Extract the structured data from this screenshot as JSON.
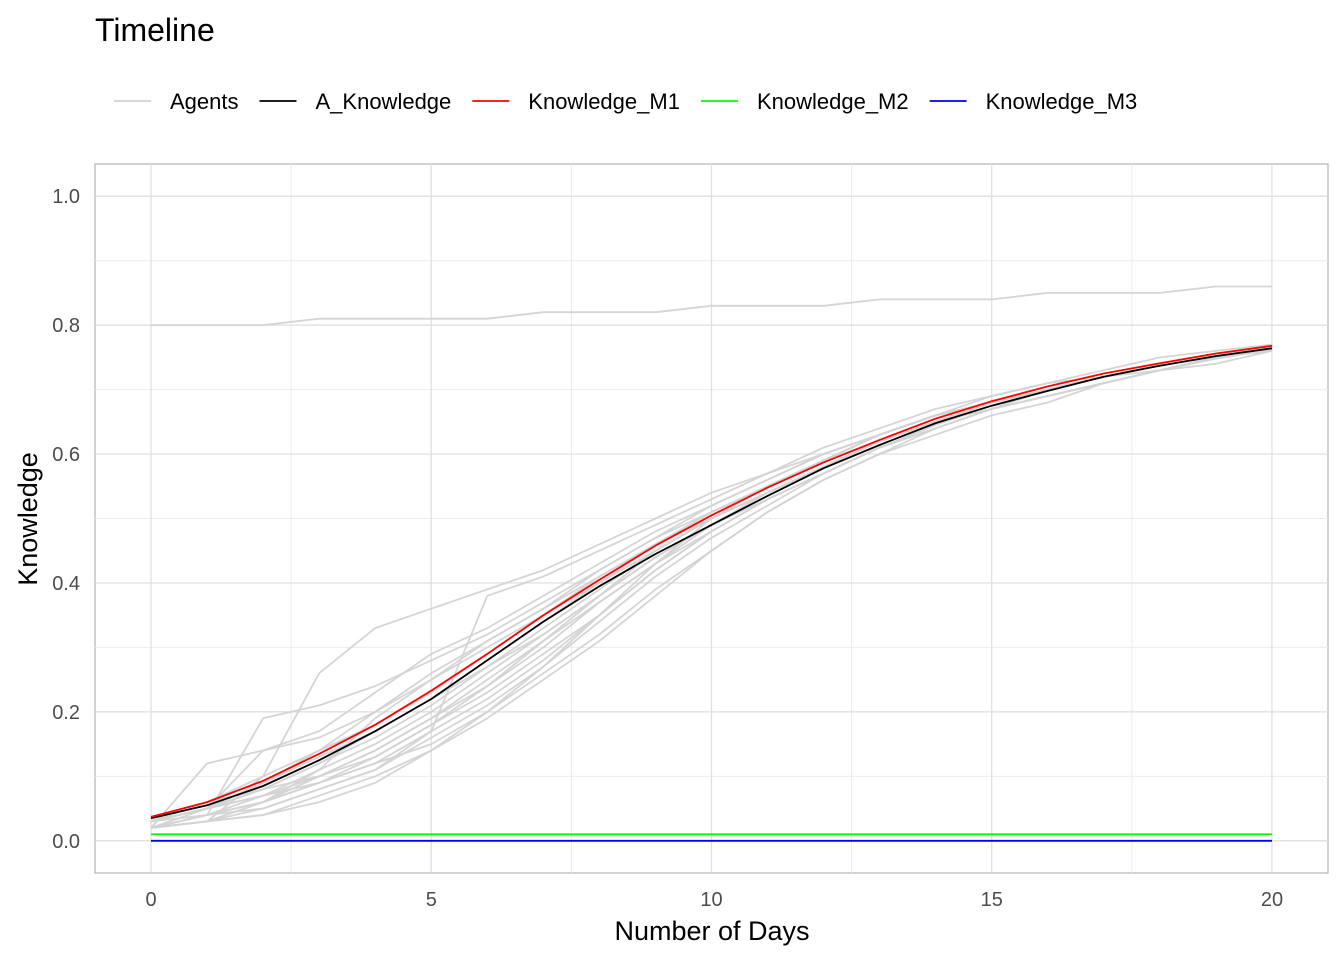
{
  "chart_data": {
    "type": "line",
    "title": "Timeline",
    "xlabel": "Number of Days",
    "ylabel": "Knowledge",
    "xlim": [
      -1,
      21
    ],
    "ylim": [
      -0.05,
      1.05
    ],
    "x_ticks": [
      0,
      5,
      10,
      15,
      20
    ],
    "y_ticks": [
      0.0,
      0.2,
      0.4,
      0.6,
      0.8,
      1.0
    ],
    "y_tick_labels": [
      "0.0",
      "0.2",
      "0.4",
      "0.6",
      "0.8",
      "1.0"
    ],
    "grid": true,
    "legend_position": "top",
    "x": [
      0,
      1,
      2,
      3,
      4,
      5,
      6,
      7,
      8,
      9,
      10,
      11,
      12,
      13,
      14,
      15,
      16,
      17,
      18,
      19,
      20
    ],
    "series": [
      {
        "name": "Agents",
        "color": "#d3d3d3",
        "role": "agents"
      },
      {
        "name": "A_Knowledge",
        "color": "#000000",
        "values": [
          0.035,
          0.055,
          0.085,
          0.125,
          0.17,
          0.22,
          0.28,
          0.34,
          0.395,
          0.445,
          0.49,
          0.535,
          0.578,
          0.614,
          0.648,
          0.675,
          0.698,
          0.72,
          0.737,
          0.752,
          0.764
        ]
      },
      {
        "name": "Knowledge_M1",
        "color": "#ff0000",
        "values": [
          0.037,
          0.06,
          0.093,
          0.135,
          0.18,
          0.233,
          0.29,
          0.35,
          0.405,
          0.458,
          0.505,
          0.548,
          0.587,
          0.622,
          0.655,
          0.682,
          0.705,
          0.725,
          0.741,
          0.756,
          0.768
        ]
      },
      {
        "name": "Knowledge_M2",
        "color": "#00ff00",
        "values": [
          0.01,
          0.01,
          0.01,
          0.01,
          0.01,
          0.01,
          0.01,
          0.01,
          0.01,
          0.01,
          0.01,
          0.01,
          0.01,
          0.01,
          0.01,
          0.01,
          0.01,
          0.01,
          0.01,
          0.01,
          0.01
        ]
      },
      {
        "name": "Knowledge_M3",
        "color": "#0000ff",
        "values": [
          0.0,
          0.0,
          0.0,
          0.0,
          0.0,
          0.0,
          0.0,
          0.0,
          0.0,
          0.0,
          0.0,
          0.0,
          0.0,
          0.0,
          0.0,
          0.0,
          0.0,
          0.0,
          0.0,
          0.0,
          0.0
        ]
      }
    ],
    "agents": [
      [
        0.8,
        0.8,
        0.8,
        0.81,
        0.81,
        0.81,
        0.81,
        0.82,
        0.82,
        0.82,
        0.83,
        0.83,
        0.83,
        0.84,
        0.84,
        0.84,
        0.85,
        0.85,
        0.85,
        0.86,
        0.86
      ],
      [
        0.02,
        0.12,
        0.14,
        0.16,
        0.2,
        0.25,
        0.31,
        0.36,
        0.42,
        0.47,
        0.52,
        0.56,
        0.6,
        0.63,
        0.66,
        0.69,
        0.71,
        0.73,
        0.75,
        0.76,
        0.77
      ],
      [
        0.02,
        0.04,
        0.19,
        0.21,
        0.24,
        0.28,
        0.32,
        0.37,
        0.42,
        0.47,
        0.51,
        0.55,
        0.59,
        0.63,
        0.66,
        0.68,
        0.7,
        0.72,
        0.74,
        0.75,
        0.765
      ],
      [
        0.02,
        0.03,
        0.1,
        0.26,
        0.33,
        0.36,
        0.39,
        0.42,
        0.46,
        0.5,
        0.54,
        0.57,
        0.61,
        0.64,
        0.67,
        0.69,
        0.71,
        0.72,
        0.73,
        0.75,
        0.76
      ],
      [
        0.03,
        0.05,
        0.14,
        0.17,
        0.23,
        0.29,
        0.33,
        0.38,
        0.43,
        0.48,
        0.52,
        0.56,
        0.6,
        0.63,
        0.66,
        0.68,
        0.7,
        0.72,
        0.74,
        0.755,
        0.765
      ],
      [
        0.03,
        0.05,
        0.07,
        0.09,
        0.12,
        0.15,
        0.2,
        0.26,
        0.32,
        0.39,
        0.45,
        0.51,
        0.56,
        0.6,
        0.64,
        0.67,
        0.7,
        0.72,
        0.74,
        0.755,
        0.768
      ],
      [
        0.02,
        0.03,
        0.04,
        0.07,
        0.1,
        0.14,
        0.19,
        0.25,
        0.31,
        0.38,
        0.45,
        0.51,
        0.56,
        0.6,
        0.63,
        0.66,
        0.68,
        0.71,
        0.73,
        0.75,
        0.762
      ],
      [
        0.02,
        0.03,
        0.05,
        0.08,
        0.11,
        0.17,
        0.38,
        0.41,
        0.45,
        0.49,
        0.53,
        0.57,
        0.6,
        0.63,
        0.66,
        0.68,
        0.7,
        0.72,
        0.74,
        0.75,
        0.765
      ],
      [
        0.03,
        0.05,
        0.07,
        0.1,
        0.14,
        0.19,
        0.24,
        0.3,
        0.37,
        0.43,
        0.49,
        0.54,
        0.58,
        0.62,
        0.65,
        0.68,
        0.7,
        0.72,
        0.74,
        0.755,
        0.767
      ],
      [
        0.02,
        0.04,
        0.06,
        0.09,
        0.13,
        0.18,
        0.23,
        0.29,
        0.35,
        0.42,
        0.48,
        0.53,
        0.57,
        0.61,
        0.64,
        0.67,
        0.69,
        0.71,
        0.73,
        0.75,
        0.763
      ],
      [
        0.03,
        0.05,
        0.08,
        0.12,
        0.16,
        0.21,
        0.27,
        0.33,
        0.39,
        0.45,
        0.5,
        0.54,
        0.58,
        0.62,
        0.65,
        0.68,
        0.7,
        0.72,
        0.74,
        0.755,
        0.766
      ],
      [
        0.02,
        0.03,
        0.06,
        0.11,
        0.19,
        0.25,
        0.3,
        0.35,
        0.4,
        0.45,
        0.5,
        0.54,
        0.58,
        0.62,
        0.65,
        0.675,
        0.7,
        0.72,
        0.74,
        0.752,
        0.765
      ],
      [
        0.03,
        0.06,
        0.1,
        0.14,
        0.18,
        0.23,
        0.29,
        0.35,
        0.41,
        0.46,
        0.51,
        0.55,
        0.59,
        0.63,
        0.66,
        0.68,
        0.7,
        0.72,
        0.74,
        0.755,
        0.768
      ],
      [
        0.02,
        0.04,
        0.05,
        0.08,
        0.11,
        0.16,
        0.21,
        0.27,
        0.34,
        0.41,
        0.47,
        0.52,
        0.57,
        0.61,
        0.64,
        0.67,
        0.69,
        0.71,
        0.73,
        0.75,
        0.762
      ],
      [
        0.03,
        0.05,
        0.09,
        0.13,
        0.17,
        0.22,
        0.27,
        0.32,
        0.38,
        0.44,
        0.49,
        0.53,
        0.57,
        0.61,
        0.64,
        0.67,
        0.69,
        0.71,
        0.73,
        0.74,
        0.76
      ],
      [
        0.02,
        0.03,
        0.04,
        0.06,
        0.09,
        0.14,
        0.2,
        0.27,
        0.35,
        0.43,
        0.5,
        0.55,
        0.59,
        0.63,
        0.66,
        0.68,
        0.7,
        0.72,
        0.74,
        0.755,
        0.765
      ],
      [
        0.03,
        0.06,
        0.08,
        0.1,
        0.13,
        0.18,
        0.24,
        0.31,
        0.38,
        0.45,
        0.5,
        0.55,
        0.59,
        0.62,
        0.65,
        0.67,
        0.69,
        0.71,
        0.73,
        0.75,
        0.763
      ],
      [
        0.02,
        0.04,
        0.07,
        0.11,
        0.15,
        0.2,
        0.26,
        0.32,
        0.38,
        0.44,
        0.49,
        0.54,
        0.58,
        0.62,
        0.65,
        0.68,
        0.7,
        0.72,
        0.74,
        0.75,
        0.764
      ],
      [
        0.03,
        0.05,
        0.08,
        0.12,
        0.17,
        0.22,
        0.28,
        0.34,
        0.4,
        0.46,
        0.51,
        0.55,
        0.59,
        0.63,
        0.66,
        0.68,
        0.7,
        0.72,
        0.74,
        0.755,
        0.766
      ],
      [
        0.02,
        0.04,
        0.06,
        0.1,
        0.14,
        0.19,
        0.25,
        0.31,
        0.37,
        0.43,
        0.48,
        0.53,
        0.57,
        0.61,
        0.64,
        0.67,
        0.69,
        0.71,
        0.73,
        0.748,
        0.762
      ],
      [
        0.03,
        0.04,
        0.06,
        0.09,
        0.12,
        0.17,
        0.22,
        0.28,
        0.35,
        0.42,
        0.48,
        0.53,
        0.57,
        0.61,
        0.645,
        0.675,
        0.7,
        0.72,
        0.74,
        0.752,
        0.764
      ],
      [
        0.02,
        0.05,
        0.09,
        0.14,
        0.2,
        0.26,
        0.31,
        0.36,
        0.41,
        0.46,
        0.5,
        0.54,
        0.58,
        0.62,
        0.65,
        0.68,
        0.7,
        0.72,
        0.74,
        0.755,
        0.766
      ]
    ]
  }
}
